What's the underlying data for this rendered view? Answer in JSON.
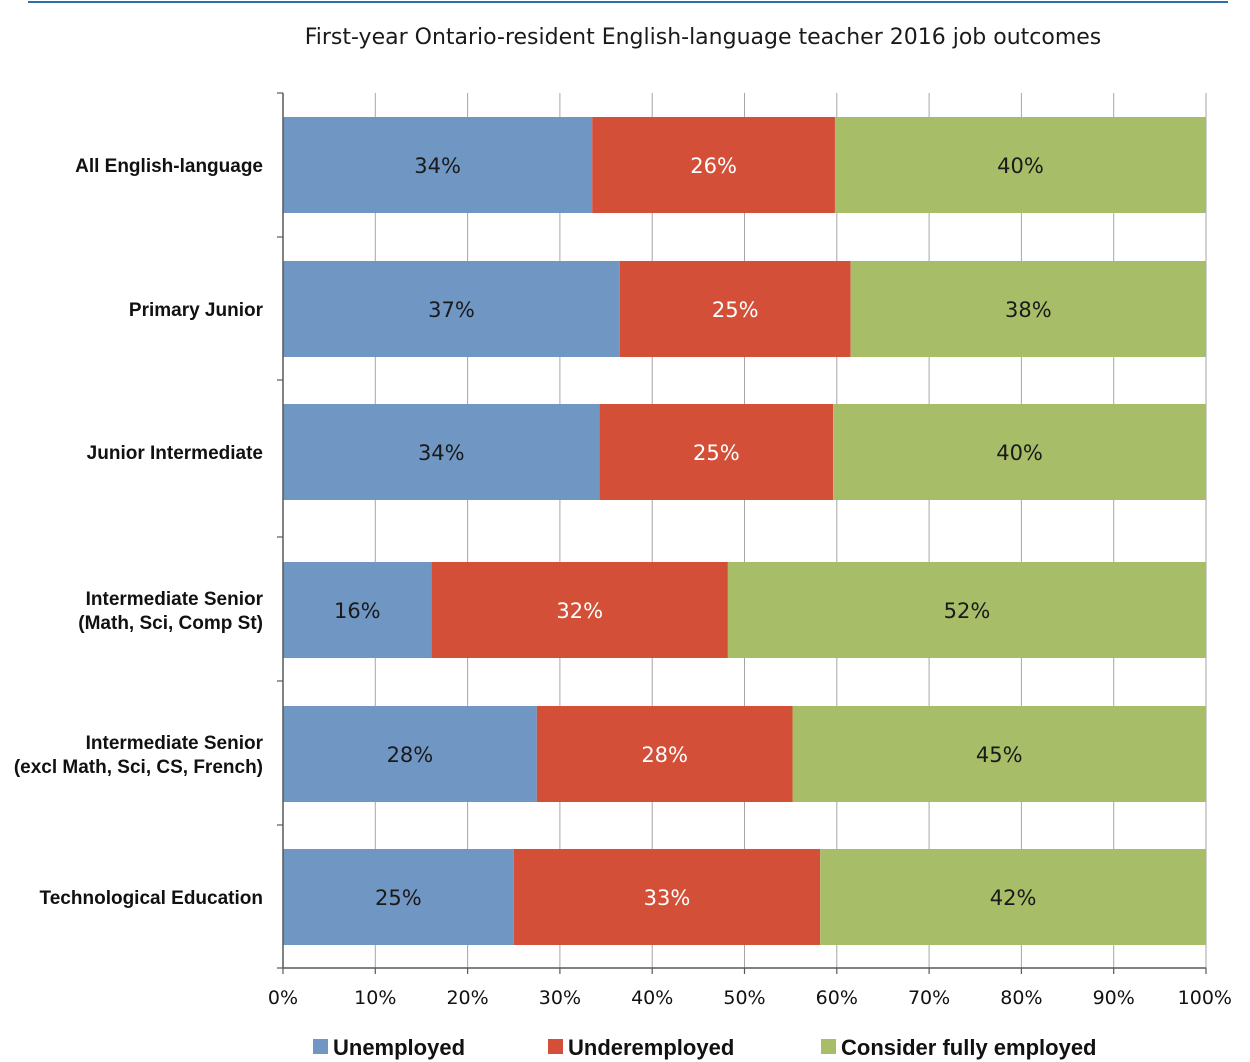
{
  "colors": {
    "top_rule": "#2f6eaa",
    "grid": "#a6a6a6",
    "axis": "#595959"
  },
  "chart_data": {
    "type": "bar",
    "orientation": "horizontal",
    "stacked": true,
    "title": "First-year Ontario-resident English-language teacher 2016 job outcomes",
    "categories": [
      [
        "All English-language"
      ],
      [
        "Primary Junior"
      ],
      [
        "Junior Intermediate"
      ],
      [
        "Intermediate Senior",
        "(Math, Sci, Comp St)"
      ],
      [
        "Intermediate Senior",
        "(excl Math, Sci, CS, French)"
      ],
      [
        "Technological Education"
      ]
    ],
    "series": [
      {
        "name": "Unemployed",
        "color": "#7096c3",
        "label_color": "#1a1a1a",
        "values": [
          33.5,
          36.5,
          34.3,
          16.1,
          27.5,
          25
        ],
        "labels": [
          "34%",
          "37%",
          "34%",
          "16%",
          "28%",
          "25%"
        ]
      },
      {
        "name": "Underemployed",
        "color": "#d44f38",
        "label_color": "#ffffff",
        "values": [
          26.3,
          25,
          25.3,
          32.1,
          27.7,
          33.2
        ],
        "labels": [
          "26%",
          "25%",
          "25%",
          "32%",
          "28%",
          "33%"
        ]
      },
      {
        "name": "Consider fully employed",
        "color": "#a8bd68",
        "label_color": "#1a1a1a",
        "values": [
          40.2,
          38.5,
          40.4,
          51.8,
          44.8,
          41.8
        ],
        "labels": [
          "40%",
          "38%",
          "40%",
          "52%",
          "45%",
          "42%"
        ]
      }
    ],
    "xlim": [
      0,
      100
    ],
    "x_ticks": [
      "0%",
      "10%",
      "20%",
      "30%",
      "40%",
      "50%",
      "60%",
      "70%",
      "80%",
      "90%",
      "100%"
    ],
    "grid": true,
    "legend": "bottom"
  }
}
